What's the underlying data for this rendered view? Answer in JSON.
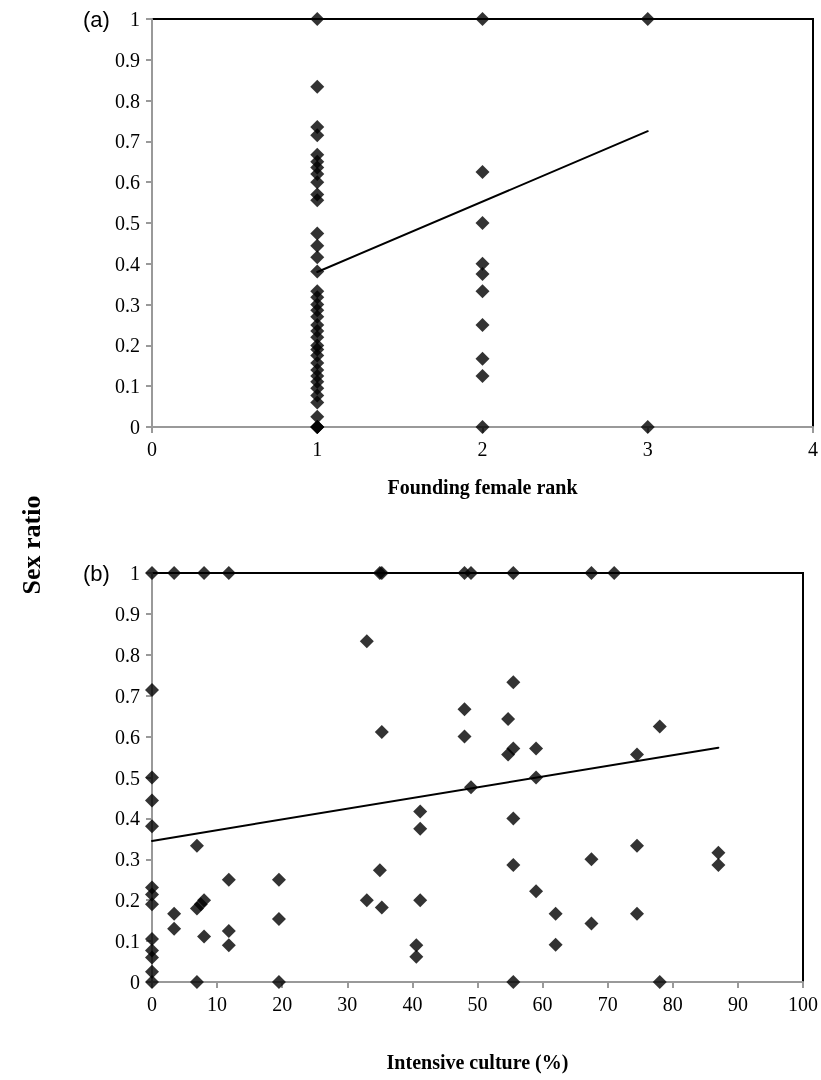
{
  "chart_data": [
    {
      "type": "scatter",
      "title": "(a)",
      "xlabel": "Founding female rank",
      "ylabel": "Sex ratio",
      "xlim": [
        0,
        4
      ],
      "xticks": [
        0,
        1,
        2,
        3,
        4
      ],
      "ylim": [
        0,
        1
      ],
      "yticks": [
        0,
        0.1,
        0.2,
        0.3,
        0.4,
        0.5,
        0.6,
        0.7,
        0.8,
        0.9,
        1
      ],
      "grid": false,
      "series": [
        {
          "type": "scatter",
          "color": "#000000",
          "marker": "diamond",
          "x": [
            1,
            1,
            1,
            1,
            1,
            1,
            1,
            1,
            1,
            1,
            1,
            1,
            1,
            1,
            1,
            1,
            1,
            1,
            1,
            1,
            1,
            1,
            1,
            1,
            1,
            1,
            1,
            1,
            1,
            1,
            1,
            1,
            1,
            1,
            1,
            1,
            1,
            2,
            2,
            2,
            2,
            2,
            2,
            2,
            2,
            2,
            2,
            3,
            3
          ],
          "values": [
            1,
            0.834,
            0.735,
            0.715,
            0.667,
            0.65,
            0.636,
            0.62,
            0.6,
            0.57,
            0.556,
            0.474,
            0.444,
            0.416,
            0.381,
            0.333,
            0.318,
            0.3,
            0.286,
            0.27,
            0.25,
            0.235,
            0.22,
            0.2,
            0.19,
            0.175,
            0.157,
            0.14,
            0.125,
            0.111,
            0.095,
            0.077,
            0.06,
            0.025,
            0,
            0,
            0,
            1,
            0.625,
            0.5,
            0.4,
            0.375,
            0.333,
            0.25,
            0.167,
            0.125,
            0,
            1,
            0
          ]
        },
        {
          "type": "line",
          "color": "#000000",
          "marker": "none",
          "line_style": "solid",
          "x": [
            1,
            3
          ],
          "values": [
            0.38,
            0.725
          ]
        }
      ]
    },
    {
      "type": "scatter",
      "title": "(b)",
      "xlabel": "Intensive culture (%)",
      "xlim": [
        0,
        100
      ],
      "xticks": [
        0,
        10,
        20,
        30,
        40,
        50,
        60,
        70,
        80,
        90,
        100
      ],
      "ylim": [
        0,
        1
      ],
      "yticks": [
        0,
        0.1,
        0.2,
        0.3,
        0.4,
        0.5,
        0.6,
        0.7,
        0.8,
        0.9,
        1
      ],
      "grid": false,
      "series": [
        {
          "type": "scatter",
          "color": "#000000",
          "marker": "diamond",
          "x": [
            0,
            0,
            0,
            0,
            0,
            0,
            0,
            0,
            0,
            0,
            0,
            0,
            0,
            3.4,
            3.4,
            3.4,
            6.9,
            6.9,
            6.9,
            7.5,
            8,
            8,
            8,
            11.8,
            11.8,
            11.8,
            11.8,
            19.5,
            19.5,
            19.5,
            33,
            33,
            35,
            35.3,
            35,
            35.3,
            35.3,
            40.6,
            40.6,
            41.2,
            41.2,
            41.2,
            48,
            48,
            48,
            49,
            49,
            54.7,
            54.7,
            55.5,
            55.5,
            55.5,
            55.5,
            55.5,
            55.5,
            59,
            59,
            59,
            62,
            62,
            67.5,
            67.5,
            67.5,
            71,
            74.5,
            74.5,
            74.5,
            78,
            78,
            87,
            87
          ],
          "values": [
            1,
            0.714,
            0.5,
            0.444,
            0.381,
            0.231,
            0.214,
            0.19,
            0.105,
            0.077,
            0.06,
            0.025,
            0,
            1,
            0.167,
            0.13,
            0.333,
            0.18,
            0,
            0.19,
            1,
            0.2,
            0.111,
            1,
            0.25,
            0.125,
            0.09,
            0.25,
            0.154,
            0,
            0.833,
            0.2,
            1,
            1,
            0.273,
            0.182,
            0.611,
            0.09,
            0.062,
            0.417,
            0.375,
            0.2,
            1,
            0.667,
            0.6,
            1,
            0.476,
            0.643,
            0.556,
            1,
            0.733,
            0.571,
            0.4,
            0.286,
            0,
            0.571,
            0.5,
            0.222,
            0.167,
            0.091,
            1,
            0.3,
            0.143,
            1,
            0.556,
            0.333,
            0.167,
            0.625,
            0,
            0.316,
            0.286
          ]
        },
        {
          "type": "line",
          "color": "#000000",
          "marker": "none",
          "line_style": "solid",
          "x": [
            0,
            87
          ],
          "values": [
            0.345,
            0.573
          ]
        }
      ]
    }
  ]
}
